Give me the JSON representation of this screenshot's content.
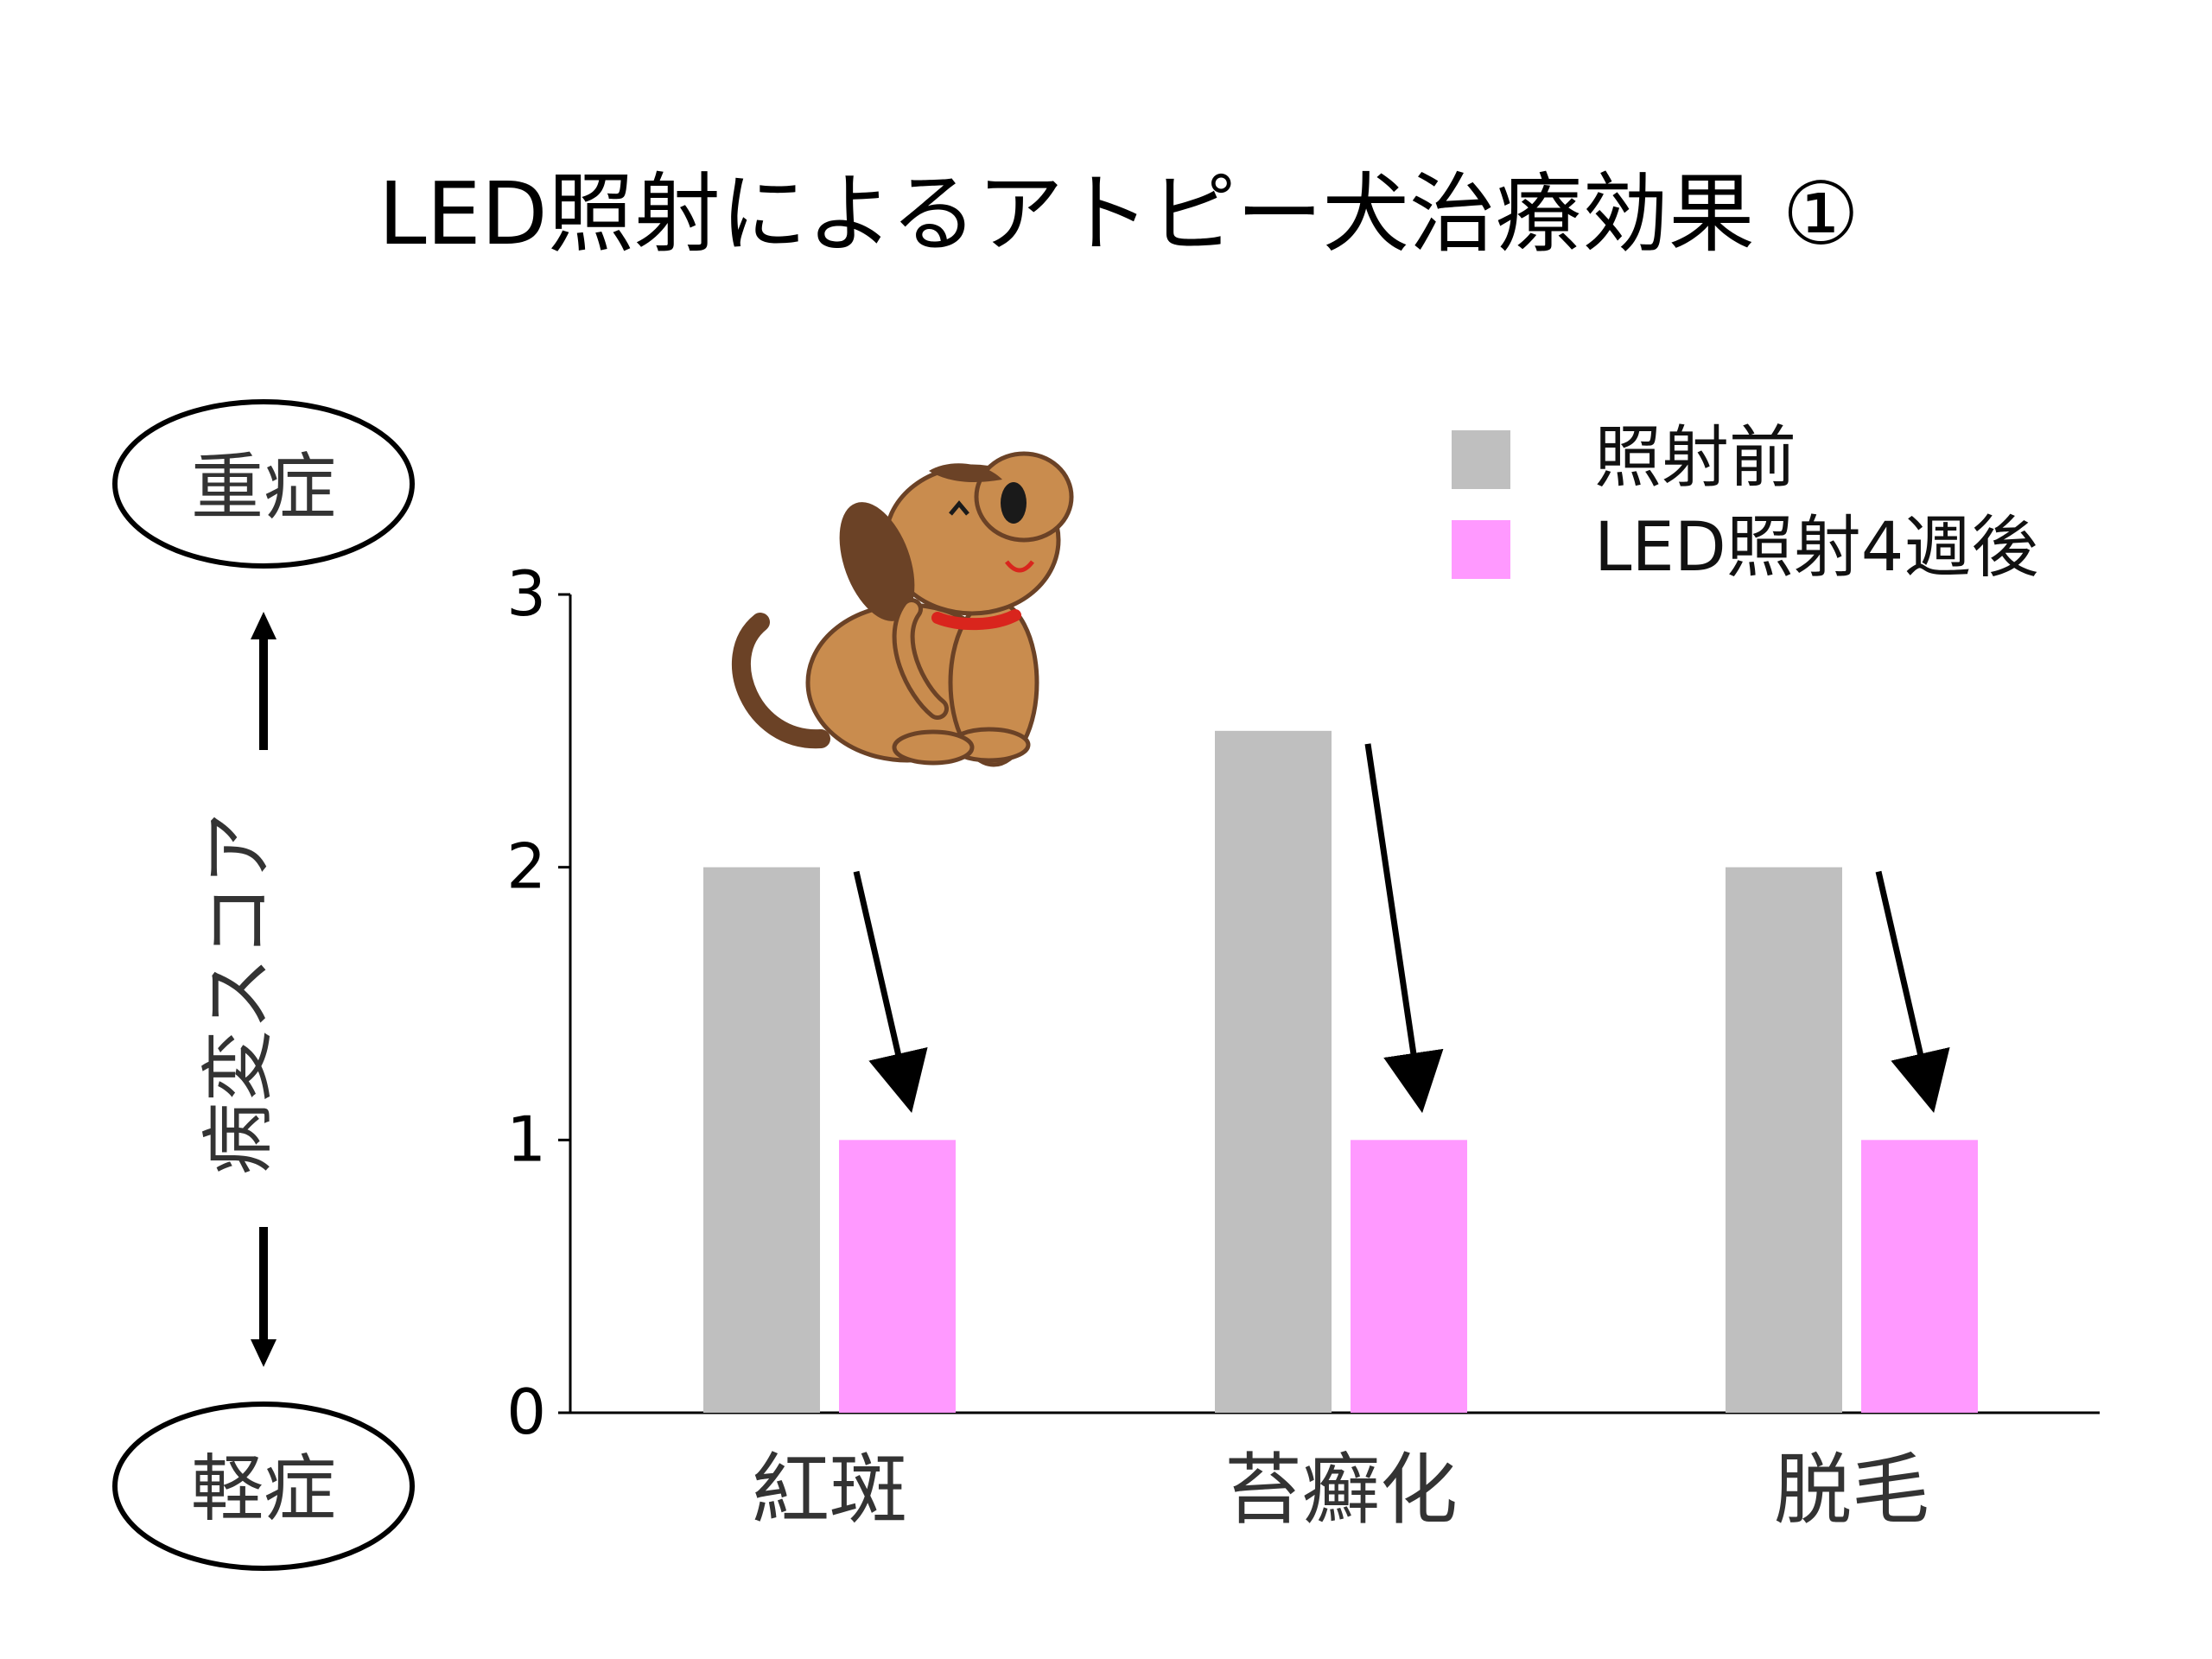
{
  "title": "LED照射によるアトピー犬治療効果 ①",
  "y_axis": {
    "label": "病変スコア",
    "severe_label": "重症",
    "mild_label": "軽症"
  },
  "colors": {
    "before": "#bfbfbf",
    "after": "#ff99ff",
    "dog_body": "#c98c4e",
    "dog_ear": "#6b4226",
    "dog_collar": "#d9251d"
  },
  "chart_data": {
    "type": "bar",
    "categories": [
      "紅斑",
      "苔癬化",
      "脱毛"
    ],
    "series": [
      {
        "name": "照射前",
        "values": [
          2,
          2.5,
          2
        ]
      },
      {
        "name": "LED照射4週後",
        "values": [
          1,
          1,
          1
        ]
      }
    ],
    "ylim": [
      0,
      3
    ],
    "yticks": [
      0,
      1,
      2,
      3
    ],
    "ytick_labels": [
      "0",
      "1",
      "2",
      "3"
    ],
    "legend": "top-right",
    "grid": false,
    "annotations": "arrows from each 照射前 bar down to the LED照射4週後 bar"
  }
}
